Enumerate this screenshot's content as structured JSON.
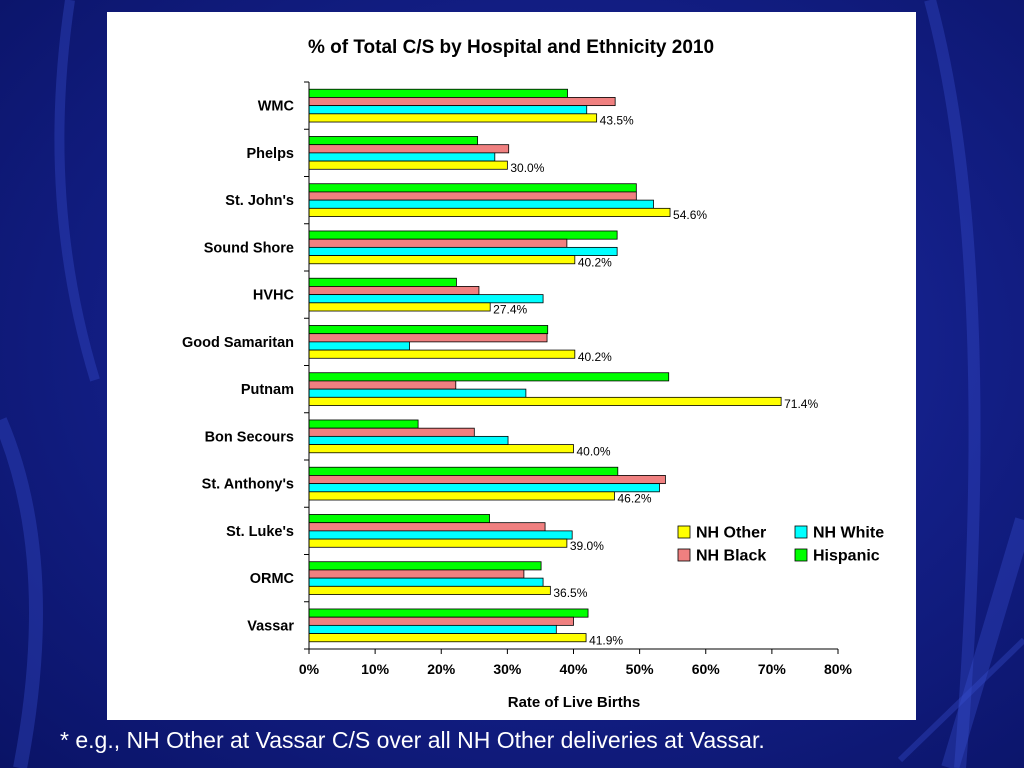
{
  "slide": {
    "background_color": "#14208a",
    "footnote": "* e.g., NH Other at Vassar C/S over all NH Other deliveries at Vassar."
  },
  "chart_data": {
    "type": "bar",
    "orientation": "horizontal",
    "title": "% of Total C/S by Hospital and Ethnicity 2010",
    "xlabel": "Rate of Live Births",
    "ylabel": "",
    "xlim": [
      0,
      80
    ],
    "xticks": [
      0,
      10,
      20,
      30,
      40,
      50,
      60,
      70,
      80
    ],
    "tick_suffix": "%",
    "grid": false,
    "legend": "lower-right",
    "categories": [
      "WMC",
      "Phelps",
      "St. John's",
      "Sound Shore",
      "HVHC",
      "Good Samaritan",
      "Putnam",
      "Bon Secours",
      "St. Anthony's",
      "St. Luke's",
      "ORMC",
      "Vassar"
    ],
    "series": [
      {
        "name": "NH Other",
        "color": "#ffff00",
        "values": [
          43.5,
          30.0,
          54.6,
          40.2,
          27.4,
          40.2,
          71.4,
          40.0,
          46.2,
          39.0,
          36.5,
          41.9
        ],
        "labeled": true
      },
      {
        "name": "NH White",
        "color": "#00ffff",
        "values": [
          42.0,
          28.1,
          52.1,
          46.6,
          35.4,
          15.2,
          32.8,
          30.1,
          53.0,
          39.8,
          35.4,
          37.4
        ],
        "labeled": false
      },
      {
        "name": "NH Black",
        "color": "#f08080",
        "values": [
          46.3,
          30.2,
          49.5,
          39.0,
          25.7,
          36.0,
          22.2,
          25.0,
          53.9,
          35.7,
          32.5,
          40.0
        ],
        "labeled": false
      },
      {
        "name": "Hispanic",
        "color": "#00ff00",
        "values": [
          39.1,
          25.5,
          49.5,
          46.6,
          22.3,
          36.1,
          54.4,
          16.5,
          46.7,
          27.3,
          35.1,
          42.2
        ],
        "labeled": false
      }
    ],
    "data_labels": [
      "43.5%",
      "30.0%",
      "54.6%",
      "40.2%",
      "27.4%",
      "40.2%",
      "71.4%",
      "40.0%",
      "46.2%",
      "39.0%",
      "36.5%",
      "41.9%"
    ],
    "legend_order": [
      "NH Other",
      "NH White",
      "NH Black",
      "Hispanic"
    ]
  }
}
